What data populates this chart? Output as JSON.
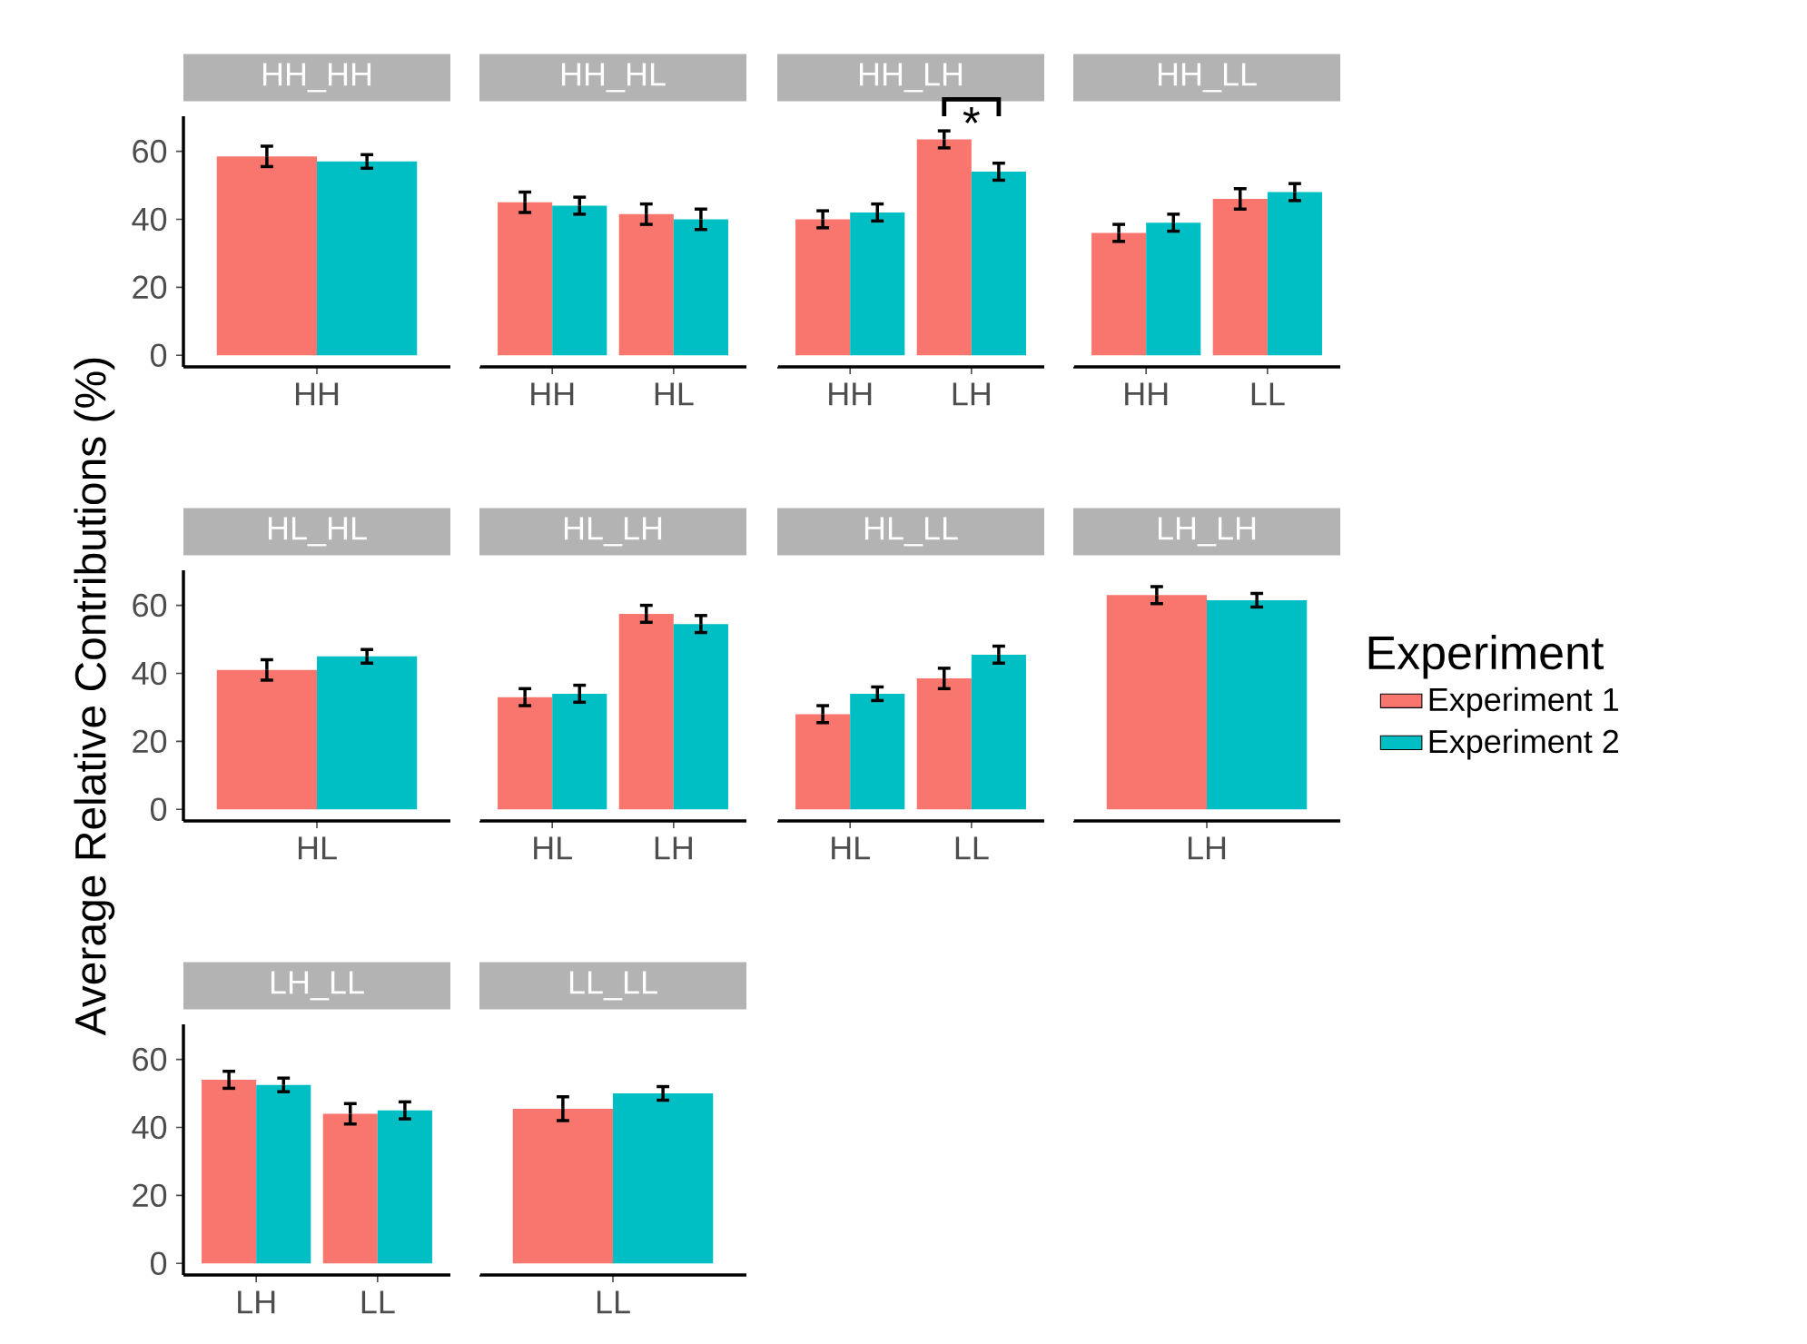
{
  "chart_data": [
    {
      "type": "bar",
      "title": "HH_HH",
      "categories": [
        "HH"
      ],
      "ylim": [
        -3.4,
        70.3
      ],
      "yticks": [
        0,
        20,
        40,
        60
      ],
      "series": [
        {
          "color": "#f8766d",
          "values": [
            58.5
          ],
          "errors": [
            3
          ]
        },
        {
          "color": "#00bfc4",
          "values": [
            57
          ],
          "errors": [
            2
          ]
        }
      ]
    },
    {
      "type": "bar",
      "title": "HH_HL",
      "categories": [
        "HH",
        "HL"
      ],
      "ylim": [
        -3.4,
        70.3
      ],
      "yticks": [
        0,
        20,
        40,
        60
      ],
      "tick_labels": "x",
      "series": [
        {
          "color": "#f8766d",
          "values": [
            45,
            41.5
          ],
          "errors": [
            3,
            3
          ]
        },
        {
          "color": "#00bfc4",
          "values": [
            44,
            40
          ],
          "errors": [
            2.5,
            3
          ]
        }
      ]
    },
    {
      "type": "bar",
      "title": "HH_LH",
      "categories": [
        "HH",
        "LH"
      ],
      "ylim": [
        -3.4,
        70.3
      ],
      "yticks": [
        0,
        20,
        40,
        60
      ],
      "tick_labels": "x",
      "annotations": [
        "*"
      ],
      "series": [
        {
          "color": "#f8766d",
          "values": [
            40,
            63.5
          ],
          "errors": [
            2.5,
            2.5
          ]
        },
        {
          "color": "#00bfc4",
          "values": [
            42,
            54
          ],
          "errors": [
            2.5,
            2.5
          ]
        }
      ]
    },
    {
      "type": "bar",
      "title": "HH_LL",
      "categories": [
        "HH",
        "LL"
      ],
      "ylim": [
        -3.4,
        70.3
      ],
      "yticks": [
        0,
        20,
        40,
        60
      ],
      "tick_labels": "x",
      "series": [
        {
          "color": "#f8766d",
          "values": [
            36,
            46
          ],
          "errors": [
            2.5,
            3
          ]
        },
        {
          "color": "#00bfc4",
          "values": [
            39,
            48
          ],
          "errors": [
            2.5,
            2.5
          ]
        }
      ]
    },
    {
      "type": "bar",
      "title": "HL_HL",
      "ylabel": "Average Relative Contributions (%)",
      "categories": [
        "HL"
      ],
      "ylim": [
        -3.4,
        70.3
      ],
      "yticks": [
        0,
        20,
        40,
        60
      ],
      "series": [
        {
          "color": "#f8766d",
          "values": [
            41
          ],
          "errors": [
            3
          ]
        },
        {
          "color": "#00bfc4",
          "values": [
            45
          ],
          "errors": [
            2
          ]
        }
      ]
    },
    {
      "type": "bar",
      "title": "HL_LH",
      "categories": [
        "HL",
        "LH"
      ],
      "ylim": [
        -3.4,
        70.3
      ],
      "yticks": [
        0,
        20,
        40,
        60
      ],
      "tick_labels": "x",
      "series": [
        {
          "color": "#f8766d",
          "values": [
            33,
            57.5
          ],
          "errors": [
            2.5,
            2.5
          ]
        },
        {
          "color": "#00bfc4",
          "values": [
            34,
            54.5
          ],
          "errors": [
            2.5,
            2.5
          ]
        }
      ]
    },
    {
      "type": "bar",
      "title": "HL_LL",
      "categories": [
        "HL",
        "LL"
      ],
      "ylim": [
        -3.4,
        70.3
      ],
      "yticks": [
        0,
        20,
        40,
        60
      ],
      "tick_labels": "x",
      "series": [
        {
          "color": "#f8766d",
          "values": [
            28,
            38.5
          ],
          "errors": [
            2.5,
            3
          ]
        },
        {
          "color": "#00bfc4",
          "values": [
            34,
            45.5
          ],
          "errors": [
            2,
            2.5
          ]
        }
      ]
    },
    {
      "type": "bar",
      "title": "LH_LH",
      "categories": [
        "LH"
      ],
      "ylim": [
        -3.4,
        70.3
      ],
      "yticks": [
        0,
        20,
        40,
        60
      ],
      "tick_labels": "x",
      "legend": "right",
      "legend_title": "Experiment",
      "series": [
        {
          "name": "Experiment 1",
          "color": "#f8766d",
          "values": [
            63
          ],
          "errors": [
            2.5
          ]
        },
        {
          "name": "Experiment 2",
          "color": "#00bfc4",
          "values": [
            61.5
          ],
          "errors": [
            2
          ]
        }
      ]
    },
    {
      "type": "bar",
      "title": "LH_LL",
      "categories": [
        "LH",
        "LL"
      ],
      "ylim": [
        -3.4,
        70.3
      ],
      "yticks": [
        0,
        20,
        40,
        60
      ],
      "series": [
        {
          "color": "#f8766d",
          "values": [
            54,
            44
          ],
          "errors": [
            2.5,
            3
          ]
        },
        {
          "color": "#00bfc4",
          "values": [
            52.5,
            45
          ],
          "errors": [
            2,
            2.5
          ]
        }
      ]
    },
    {
      "type": "bar",
      "title": "LL_LL",
      "categories": [
        "LL"
      ],
      "ylim": [
        -3.4,
        70.3
      ],
      "yticks": [
        0,
        20,
        40,
        60
      ],
      "tick_labels": "x",
      "series": [
        {
          "color": "#f8766d",
          "values": [
            45.5
          ],
          "errors": [
            3.5
          ]
        },
        {
          "color": "#00bfc4",
          "values": [
            50
          ],
          "errors": [
            2
          ]
        }
      ]
    }
  ]
}
